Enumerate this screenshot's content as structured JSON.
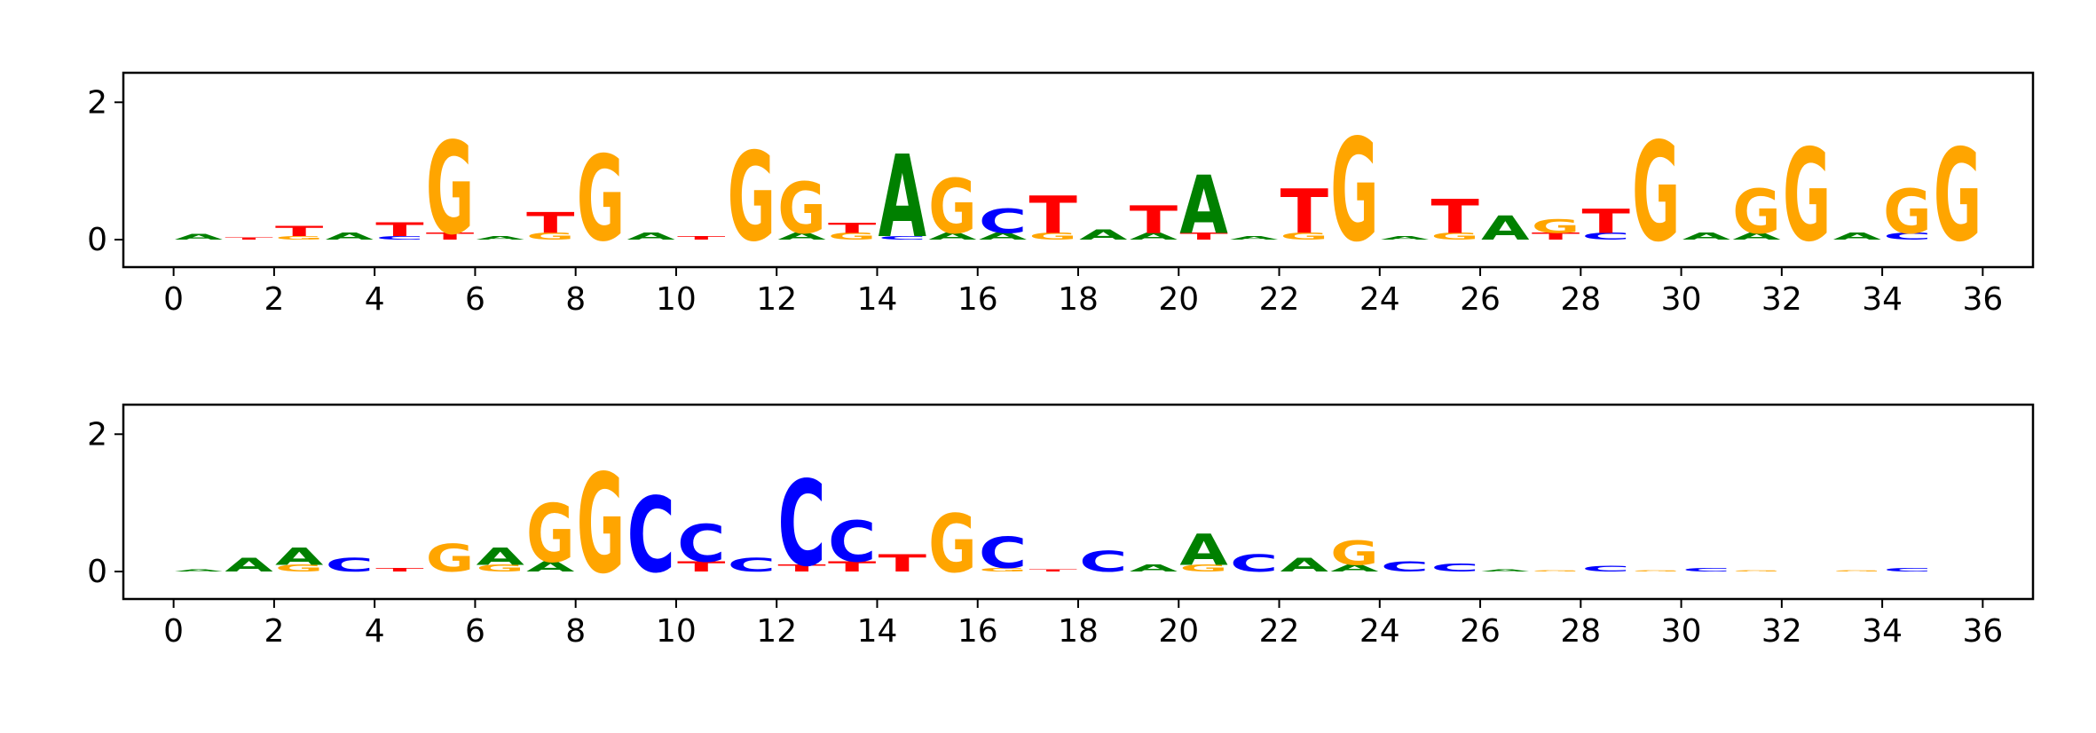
{
  "chart_data": [
    {
      "type": "logo",
      "x": [
        0.5,
        1.5,
        2.5,
        3.5,
        4.5,
        5.5,
        6.5,
        7.5,
        8.5,
        9.5,
        10.5,
        11.5,
        12.5,
        13.5,
        14.5,
        15.5,
        16.5,
        17.5,
        18.5,
        19.5,
        20.5,
        21.5,
        22.5,
        23.5,
        24.5,
        25.5,
        26.5,
        27.5,
        28.5,
        29.5,
        30.5,
        31.5,
        32.5,
        33.5,
        34.5,
        35.5
      ],
      "series": [
        {
          "name": "A",
          "color": "#008000",
          "values": [
            0.08,
            0,
            0,
            0.1,
            0,
            0,
            0.05,
            0,
            0,
            0.1,
            0,
            0,
            0.1,
            0,
            1.2,
            0.1,
            0.1,
            0,
            0.15,
            0.1,
            0.85,
            0.05,
            0,
            0,
            0.05,
            0,
            0.35,
            0,
            0,
            0,
            0.1,
            0.1,
            0,
            0.1,
            0,
            0
          ]
        },
        {
          "name": "C",
          "color": "#0000ff",
          "values": [
            0,
            0,
            0,
            0,
            0.05,
            0,
            0,
            0,
            0,
            0,
            0,
            0,
            0,
            0,
            0.05,
            0,
            0.35,
            0,
            0,
            0,
            0,
            0,
            0,
            0,
            0,
            0,
            0,
            0,
            0.1,
            0,
            0,
            0,
            0,
            0,
            0.1,
            0
          ]
        },
        {
          "name": "G",
          "color": "#ffa500",
          "values": [
            0,
            0,
            0.05,
            0,
            0,
            1.35,
            0,
            0.1,
            1.25,
            0,
            0,
            1.3,
            0.75,
            0.1,
            0,
            0.8,
            0,
            0.1,
            0,
            0,
            0,
            0,
            0.1,
            1.5,
            0,
            0.1,
            0,
            0.2,
            0,
            1.45,
            0,
            0.65,
            1.35,
            0,
            0.65,
            1.35
          ]
        },
        {
          "name": "T",
          "color": "#ff0000",
          "values": [
            0,
            0.03,
            0.15,
            0,
            0.2,
            0.1,
            0,
            0.3,
            0,
            0,
            0.05,
            0,
            0,
            0.15,
            0,
            0,
            0,
            0.55,
            0,
            0.4,
            0.1,
            0,
            0.65,
            0,
            0,
            0.5,
            0,
            0.1,
            0.35,
            0,
            0,
            0,
            0,
            0,
            0,
            0
          ]
        }
      ],
      "xlim": [
        -1,
        37
      ],
      "xticks": [
        0,
        2,
        4,
        6,
        8,
        10,
        12,
        14,
        16,
        18,
        20,
        22,
        24,
        26,
        28,
        30,
        32,
        34,
        36
      ],
      "ylim": [
        -0.4,
        2.43
      ],
      "yticks": [
        0,
        2
      ]
    },
    {
      "type": "logo",
      "x": [
        0.5,
        1.5,
        2.5,
        3.5,
        4.5,
        5.5,
        6.5,
        7.5,
        8.5,
        9.5,
        10.5,
        11.5,
        12.5,
        13.5,
        14.5,
        15.5,
        16.5,
        17.5,
        18.5,
        19.5,
        20.5,
        21.5,
        22.5,
        23.5,
        24.5,
        25.5,
        26.5,
        27.5,
        28.5,
        29.5,
        30.5,
        31.5,
        32.5,
        33.5,
        34.5,
        35.5
      ],
      "series": [
        {
          "name": "A",
          "color": "#008000",
          "values": [
            0.03,
            0.2,
            0.25,
            0,
            0,
            0,
            0.25,
            0.15,
            0,
            0,
            0,
            0,
            0,
            0,
            0,
            0,
            0,
            0,
            0,
            0.1,
            0.45,
            0,
            0.2,
            0.1,
            0,
            0,
            0.03,
            0,
            0,
            0,
            0,
            0,
            0,
            0,
            0,
            0
          ]
        },
        {
          "name": "C",
          "color": "#0000ff",
          "values": [
            0,
            0,
            0,
            0.2,
            0,
            0,
            0,
            0,
            0,
            1.1,
            0.55,
            0.2,
            1.25,
            0.6,
            0,
            0,
            0.45,
            0,
            0.3,
            0,
            0,
            0.25,
            0,
            0,
            0.15,
            0.12,
            0,
            0,
            0.08,
            0,
            0.05,
            0,
            0,
            0,
            0.05,
            0
          ]
        },
        {
          "name": "G",
          "color": "#ffa500",
          "values": [
            0,
            0,
            0.1,
            0,
            0,
            0.4,
            0.1,
            0.85,
            1.45,
            0,
            0,
            0,
            0,
            0,
            0,
            0.85,
            0.05,
            0,
            0,
            0,
            0.1,
            0,
            0,
            0.35,
            0,
            0,
            0,
            0.02,
            0,
            0.02,
            0,
            0.02,
            0,
            0.02,
            0,
            0
          ]
        },
        {
          "name": "T",
          "color": "#ff0000",
          "values": [
            0,
            0,
            0,
            0,
            0.05,
            0,
            0,
            0,
            0,
            0,
            0.15,
            0,
            0.1,
            0.15,
            0.25,
            0,
            0,
            0.03,
            0,
            0,
            0,
            0,
            0,
            0,
            0,
            0,
            0,
            0,
            0,
            0,
            0,
            0,
            0,
            0,
            0,
            0
          ]
        }
      ],
      "xlim": [
        -1,
        37
      ],
      "xticks": [
        0,
        2,
        4,
        6,
        8,
        10,
        12,
        14,
        16,
        18,
        20,
        22,
        24,
        26,
        28,
        30,
        32,
        34,
        36
      ],
      "ylim": [
        -0.4,
        2.43
      ],
      "yticks": [
        0,
        2
      ]
    }
  ]
}
